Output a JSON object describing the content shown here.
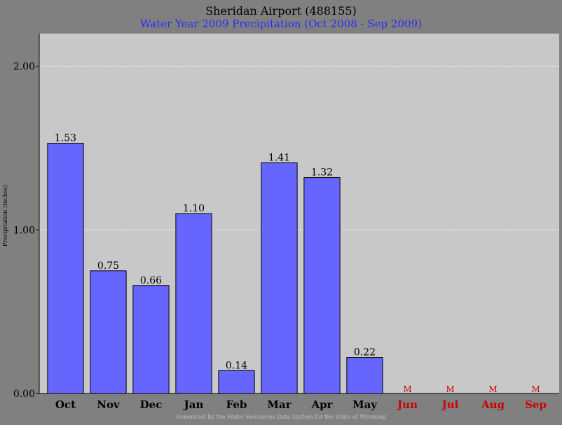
{
  "chart_data": {
    "type": "bar",
    "title": "Sheridan Airport (488155)",
    "subtitle": "Water Year 2009 Precipitation (Oct 2008 - Sep 2009)",
    "xlabel": "",
    "ylabel": "Precipitation (Inches)",
    "ylim": [
      0,
      2.2
    ],
    "yticks": [
      "0.00",
      "1.00",
      "2.00"
    ],
    "grid": true,
    "categories": [
      "Oct",
      "Nov",
      "Dec",
      "Jan",
      "Feb",
      "Mar",
      "Apr",
      "May",
      "Jun",
      "Jul",
      "Aug",
      "Sep"
    ],
    "values": [
      1.53,
      0.75,
      0.66,
      1.1,
      0.14,
      1.41,
      1.32,
      0.22,
      null,
      null,
      null,
      null
    ],
    "value_labels": [
      "1.53",
      "0.75",
      "0.66",
      "1.10",
      "0.14",
      "1.41",
      "1.32",
      "0.22",
      "M",
      "M",
      "M",
      "M"
    ],
    "missing": [
      false,
      false,
      false,
      false,
      false,
      false,
      false,
      false,
      true,
      true,
      true,
      true
    ],
    "footer": "Generated by the Water Resources Data System for the State of Wyoming",
    "colors": {
      "background": "#808080",
      "plot": "#c8c8c8",
      "bar": "#6666ff",
      "title": "#000000",
      "subtitle": "#2a2aff",
      "missing": "#cc0000",
      "footer": "#c0c0c0"
    }
  }
}
